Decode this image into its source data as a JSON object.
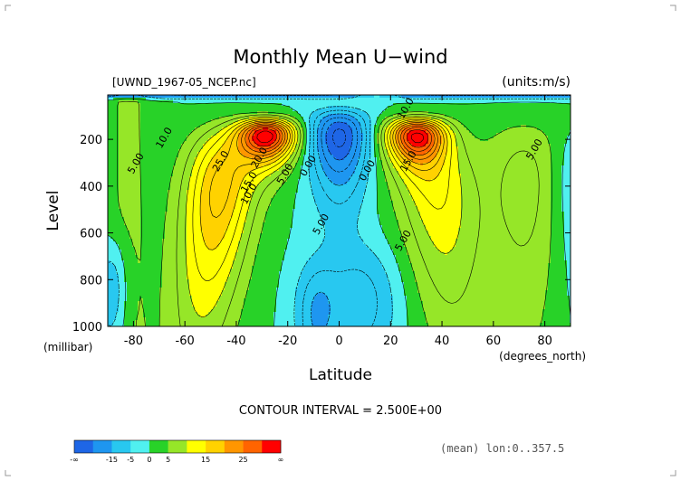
{
  "chart_data": {
    "type": "heatmap",
    "subtype": "filled-contour",
    "title": "Monthly Mean U−wind",
    "file_label": "[UWND_1967-05_NCEP.nc]",
    "units_label": "(units:m/s)",
    "xlabel": "Latitude",
    "ylabel": "Level",
    "x_units": "(degrees_north)",
    "y_units": "(millibar)",
    "xlim": [
      -90,
      90
    ],
    "ylim": [
      1000,
      10
    ],
    "x_ticks": [
      "-80",
      "-60",
      "-40",
      "-20",
      "0",
      "20",
      "40",
      "60",
      "80"
    ],
    "x_tick_values": [
      -80,
      -60,
      -40,
      -20,
      0,
      20,
      40,
      60,
      80
    ],
    "y_ticks": [
      "200",
      "400",
      "600",
      "800",
      "1000"
    ],
    "y_tick_values": [
      200,
      400,
      600,
      800,
      1000
    ],
    "contour_interval_text": "CONTOUR INTERVAL = 2.500E+00",
    "footnote": "(mean) lon:0..357.5",
    "colorbar": {
      "tick_labels": [
        "-∞",
        "-15",
        "-5",
        "0",
        "5",
        "15",
        "25",
        "∞"
      ],
      "colors": [
        "#1e66e6",
        "#1e96f0",
        "#28c8f0",
        "#50f0f0",
        "#28d228",
        "#96e628",
        "#ffff00",
        "#ffd200",
        "#ff9600",
        "#ff6400",
        "#ff0000"
      ]
    },
    "contour_labels": [
      {
        "text": "10.0",
        "lat": -67,
        "p": 200
      },
      {
        "text": "5.00",
        "lat": -78,
        "p": 310
      },
      {
        "text": "25.0",
        "lat": -45,
        "p": 300
      },
      {
        "text": "20.0",
        "lat": -30,
        "p": 285
      },
      {
        "text": "15.0",
        "lat": -34,
        "p": 390
      },
      {
        "text": "10.0",
        "lat": -34,
        "p": 440
      },
      {
        "text": "5.00",
        "lat": -20,
        "p": 355
      },
      {
        "text": "0.00",
        "lat": -11,
        "p": 320
      },
      {
        "text": "5.00",
        "lat": -6,
        "p": 570
      },
      {
        "text": "0.00",
        "lat": 12,
        "p": 340
      },
      {
        "text": "10.0",
        "lat": 27,
        "p": 75
      },
      {
        "text": "15.0",
        "lat": 28,
        "p": 300
      },
      {
        "text": "5.00",
        "lat": 26,
        "p": 640
      },
      {
        "text": "5.00",
        "lat": 77,
        "p": 250
      }
    ],
    "jets": [
      {
        "lat": -28,
        "p": 180,
        "max": 30,
        "hemisphere": "south"
      },
      {
        "lat": 30,
        "p": 180,
        "max": 27.5,
        "hemisphere": "north"
      }
    ]
  }
}
